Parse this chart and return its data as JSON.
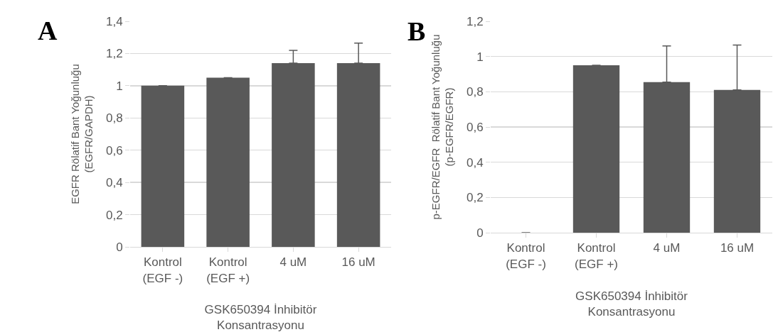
{
  "chart_data": [
    {
      "type": "bar",
      "title": "A",
      "categories": [
        "Kontrol\n(EGF -)",
        "Kontrol\n(EGF +)",
        "4 uM",
        "16 uM"
      ],
      "values": [
        1.0,
        1.05,
        1.14,
        1.14
      ],
      "errors": [
        null,
        null,
        [
          1.14,
          1.22
        ],
        [
          1.14,
          1.265
        ]
      ],
      "color": "#595959",
      "ylabel": "EGFR Rölatif Bant Yoğunluğu\n(EGFR/GAPDH)",
      "xlabel": "GSK650394 İnhibitör\nKonsantrasyonu",
      "ylim": [
        0,
        1.4
      ],
      "yticks": [
        {
          "value": 0,
          "label": "0"
        },
        {
          "value": 0.2,
          "label": "0,2"
        },
        {
          "value": 0.4,
          "label": "0,4"
        },
        {
          "value": 0.6,
          "label": "0,6"
        },
        {
          "value": 0.8,
          "label": "0,8"
        },
        {
          "value": 1,
          "label": "1"
        },
        {
          "value": 1.2,
          "label": "1,2"
        },
        {
          "value": 1.4,
          "label": "1,4"
        }
      ],
      "grid": "y"
    },
    {
      "type": "bar",
      "title": "B",
      "categories": [
        "Kontrol\n(EGF -)",
        "Kontrol\n(EGF +)",
        "4 uM",
        "16 uM"
      ],
      "values": [
        0,
        0.95,
        0.855,
        0.81
      ],
      "errors": [
        null,
        null,
        [
          0.855,
          1.06
        ],
        [
          0.81,
          1.065
        ]
      ],
      "color": "#595959",
      "ylabel": "p-EGFR/EGFR  Rölatif Bant Yoğunluğu\n(p-EGFR/EGFR)",
      "xlabel": "GSK650394 İnhibitör\nKonsantrasyonu",
      "ylim": [
        0,
        1.2
      ],
      "yticks": [
        {
          "value": 0,
          "label": "0"
        },
        {
          "value": 0.2,
          "label": "0,2"
        },
        {
          "value": 0.4,
          "label": "0,4"
        },
        {
          "value": 0.6,
          "label": "0,6"
        },
        {
          "value": 0.8,
          "label": "0,8"
        },
        {
          "value": 1,
          "label": "1"
        },
        {
          "value": 1.2,
          "label": "1,2"
        }
      ],
      "grid": "y"
    }
  ]
}
